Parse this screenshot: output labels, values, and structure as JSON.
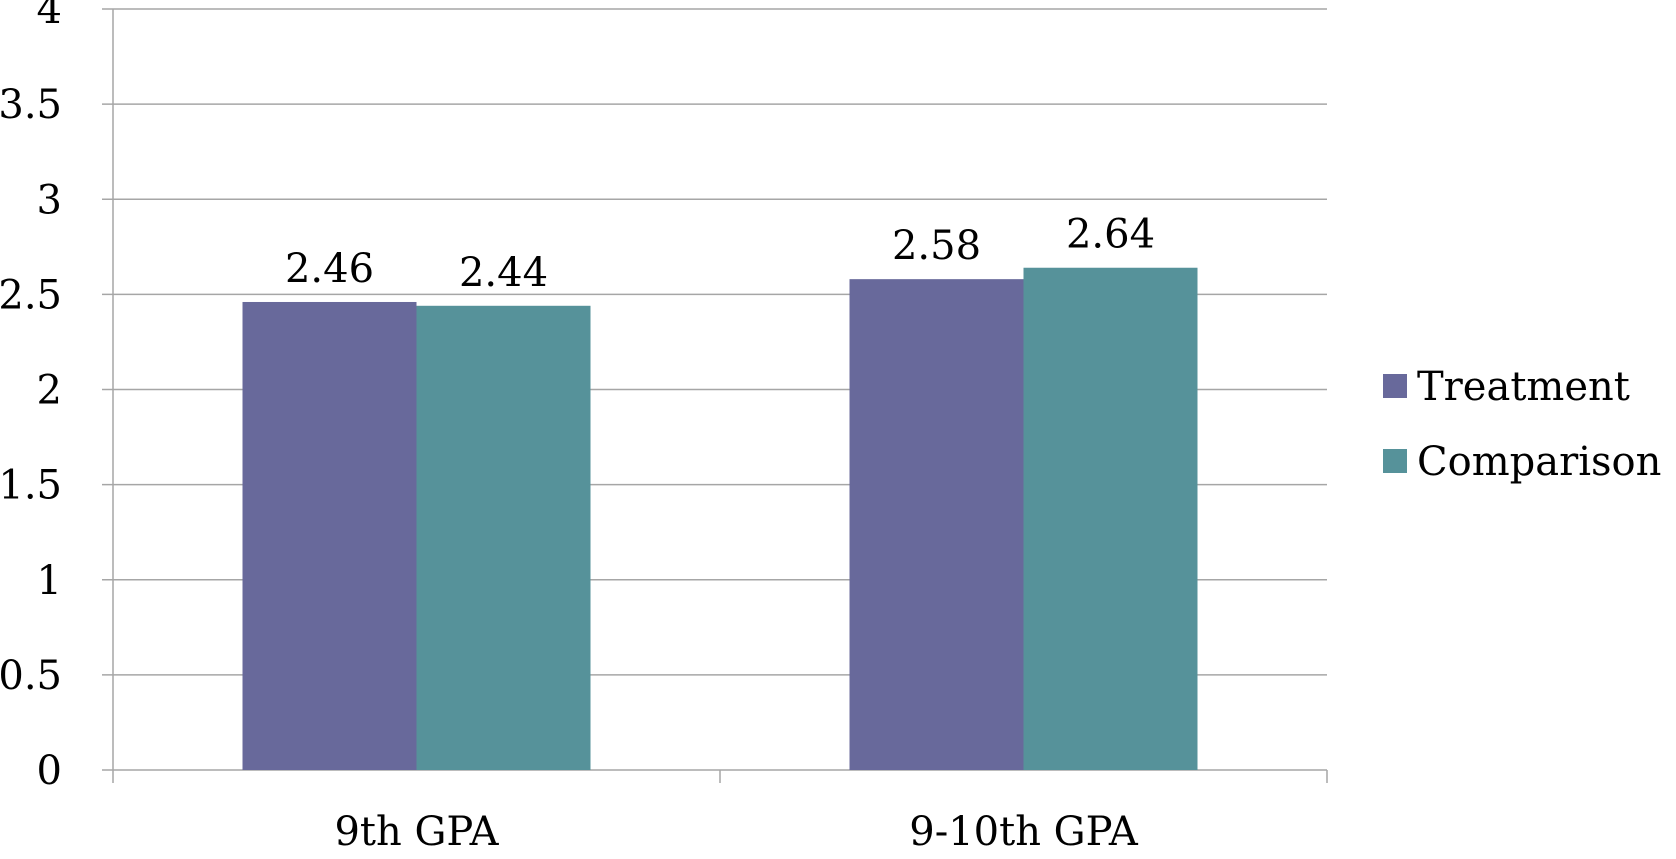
{
  "chart_data": {
    "type": "bar",
    "categories": [
      "9th GPA",
      "9-10th GPA"
    ],
    "series": [
      {
        "name": "Treatment",
        "values": [
          2.46,
          2.58
        ],
        "color": "#68699b"
      },
      {
        "name": "Comparison",
        "values": [
          2.44,
          2.64
        ],
        "color": "#56929a"
      }
    ],
    "data_labels": [
      [
        "2.46",
        "2.58"
      ],
      [
        "2.44",
        "2.64"
      ]
    ],
    "yticks": [
      "0",
      "0.5",
      "1",
      "1.5",
      "2",
      "2.5",
      "3",
      "3.5",
      "4"
    ],
    "ylim": [
      0,
      4
    ],
    "grid": true,
    "legend_position": "right",
    "title": "",
    "xlabel": "",
    "ylabel": ""
  }
}
